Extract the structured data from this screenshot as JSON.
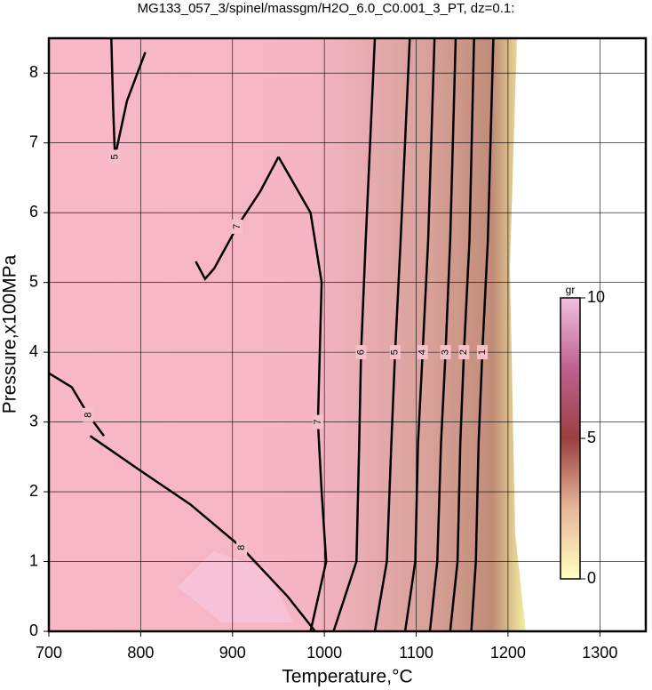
{
  "chart_data": {
    "type": "contour",
    "title": "MG133_057_3/spinel/massgm/H2O_6.0_C0.001_3_PT, dz=0.1:",
    "xlabel": "Temperature,°C",
    "ylabel": "Pressure,x100MPa",
    "xlim": [
      700,
      1350
    ],
    "ylim": [
      0,
      8.5
    ],
    "xticks": [
      700,
      800,
      900,
      1000,
      1100,
      1200,
      1300
    ],
    "yticks": [
      0,
      1,
      2,
      3,
      4,
      5,
      6,
      7,
      8
    ],
    "grid": true,
    "line_color": "#000000",
    "contours": [
      {
        "level": 6,
        "x": [
          1010,
          1035,
          1038,
          1040,
          1045,
          1055
        ],
        "y": [
          0,
          1,
          2.7,
          4,
          5.6,
          8.5
        ]
      },
      {
        "level": 5,
        "x": [
          1055,
          1068,
          1073,
          1077,
          1083,
          1093
        ],
        "y": [
          0,
          1,
          2.7,
          4,
          5.6,
          8.5
        ]
      },
      {
        "level": 4,
        "x": [
          1088,
          1099,
          1102,
          1107,
          1113,
          1120
        ],
        "y": [
          0,
          1,
          2.7,
          4,
          5.6,
          8.5
        ]
      },
      {
        "level": 3,
        "x": [
          1115,
          1123,
          1127,
          1132,
          1137,
          1143
        ],
        "y": [
          0,
          1,
          2.7,
          4,
          5.6,
          8.5
        ]
      },
      {
        "level": 2,
        "x": [
          1137,
          1145,
          1148,
          1152,
          1158,
          1163
        ],
        "y": [
          0,
          1,
          2.7,
          4,
          5.6,
          8.5
        ]
      },
      {
        "level": 1,
        "x": [
          1160,
          1165,
          1168,
          1172,
          1178,
          1184
        ],
        "y": [
          0,
          1,
          2.7,
          4,
          5.6,
          8.5
        ]
      },
      {
        "level": 7,
        "x": [
          950,
          985,
          997,
          995,
          993,
          997,
          1002,
          985
        ],
        "y": [
          6.8,
          6.0,
          5.0,
          4.0,
          3.0,
          2.0,
          1.0,
          0
        ]
      },
      {
        "level": 8,
        "x": [
          745,
          800,
          854,
          910,
          960,
          990
        ],
        "y": [
          2.8,
          2.3,
          1.82,
          1.2,
          0.5,
          0
        ]
      },
      {
        "level": 8,
        "x": [
          700,
          725,
          743,
          760
        ],
        "y": [
          3.7,
          3.5,
          3.1,
          2.8
        ]
      },
      {
        "level": 5,
        "x": [
          768,
          770,
          772,
          785,
          805
        ],
        "y": [
          8.5,
          7.5,
          6.8,
          7.6,
          8.3
        ]
      },
      {
        "level": 7,
        "x": [
          860,
          870,
          880,
          905,
          930,
          950
        ],
        "y": [
          5.3,
          5.05,
          5.2,
          5.8,
          6.3,
          6.8
        ]
      }
    ],
    "colorbar": {
      "label": "gr",
      "lim": [
        0,
        10
      ],
      "ticks": [
        0,
        5,
        10
      ],
      "colors": [
        "#ffffc0",
        "#e8b79a",
        "#9a4040",
        "#c06090",
        "#f0c0e0"
      ]
    }
  }
}
